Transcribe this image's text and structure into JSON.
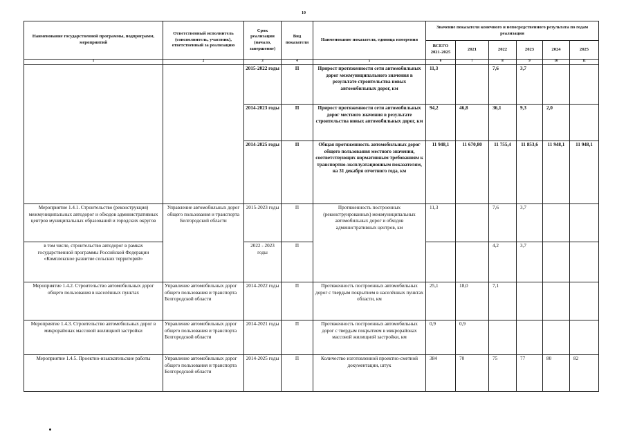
{
  "page_number": "10",
  "header": {
    "col1": "Наименование государственной программы, подпрограмм, мероприятий",
    "col2": "Ответственный исполнитель (соисполнитель, участник), ответственный за реализацию",
    "col3": "Срок реализации (начало, завершение)",
    "col4": "Вид показателя",
    "col5": "Наименование показателя, единица измерения",
    "values_group": "Значение показателя конечного и непосредственного результата по годам реализации",
    "total": "ВСЕГО 2021-2025",
    "years": [
      "2021",
      "2022",
      "2023",
      "2024",
      "2025"
    ],
    "numbers": [
      "1",
      "2",
      "3",
      "4",
      "5",
      "6",
      "7",
      "8",
      "9",
      "10",
      "11"
    ]
  },
  "rows": [
    {
      "period": "2015-2022 годы",
      "type": "П",
      "indicator": "Прирост протяженности сети автомобильных дорог межмуниципального значения в результате строительства новых автомобильных дорог, км",
      "values": [
        "11,3",
        "",
        "7,6",
        "3,7",
        "",
        ""
      ]
    },
    {
      "period": "2014-2023 годы",
      "type": "П",
      "indicator": "Прирост протяженности сети автомобильных дорог местного значения в результате строительства новых автомобильных дорог, км",
      "values": [
        "94,2",
        "46,8",
        "36,1",
        "9,3",
        "2,0",
        ""
      ]
    },
    {
      "period": "2014-2025 годы",
      "type": "П",
      "indicator": "Общая протяженность автомобильных дорог общего пользования местного значения, соответствующих нормативным требованиям к транспортно-эксплуатационным показателям, на 31 декабря отчетного года, км",
      "values": [
        "11 948,1",
        "11 670,80",
        "11 755,4",
        "11 853,6",
        "11 948,1",
        "11 948,1"
      ]
    },
    {
      "name": "Мероприятие 1.4.1. Строительство (реконструкция) межмуниципальных автодорог и обходов административных центров муниципальных образований и городских округов",
      "executor": "Управление автомобильных дорог общего пользования и транспорта Белгородской области",
      "period": "2015-2023 годы",
      "type": "П",
      "indicator": "Протяженность построенных (реконструированных) межмуниципальных автомобильных дорог и обходов административных центров, км",
      "values": [
        "11,3",
        "",
        "7,6",
        "3,7",
        "",
        ""
      ]
    },
    {
      "name": "в том числе, строительство автодорог в рамках государственной программы Российской Федерации «Комплексное развитие сельских территорий»",
      "period": "2022 - 2023 годы",
      "type": "П",
      "values": [
        "",
        "",
        "4,2",
        "3,7",
        "",
        ""
      ]
    },
    {
      "name": "Мероприятие 1.4.2. Строительство автомобильных дорог общего пользования в населённых пунктах",
      "executor": "Управление автомобильных дорог общего пользования и транспорта Белгородской области",
      "period": "2014-2022 годы",
      "type": "П",
      "indicator": "Протяженность построенных автомобильных дорог с твердым покрытием в населённых пунктах области, км",
      "values": [
        "25,1",
        "18,0",
        "7,1",
        "",
        "",
        ""
      ]
    },
    {
      "name": "Мероприятие 1.4.3. Строительство автомобильных дорог в микрорайонах массовой жилищной застройки",
      "executor": "Управление автомобильных дорог общего пользования и транспорта Белгородской области",
      "period": "2014-2021 годы",
      "type": "П",
      "indicator": "Протяженность построенных автомобильных дорог с твердым покрытием в микрорайонах массовой жилищной застройки, км",
      "values": [
        "0,9",
        "0,9",
        "",
        "",
        "",
        ""
      ]
    },
    {
      "name": "Мероприятие 1.4.5. Проектно-изыскательские работы",
      "executor": "Управление автомобильных дорог общего пользования и транспорта Белгородской области",
      "period": "2014-2025 годы",
      "type": "П",
      "indicator": "Количество изготовленной проектно-сметной документации, штук",
      "values": [
        "384",
        "70",
        "75",
        "77",
        "80",
        "82"
      ]
    }
  ]
}
